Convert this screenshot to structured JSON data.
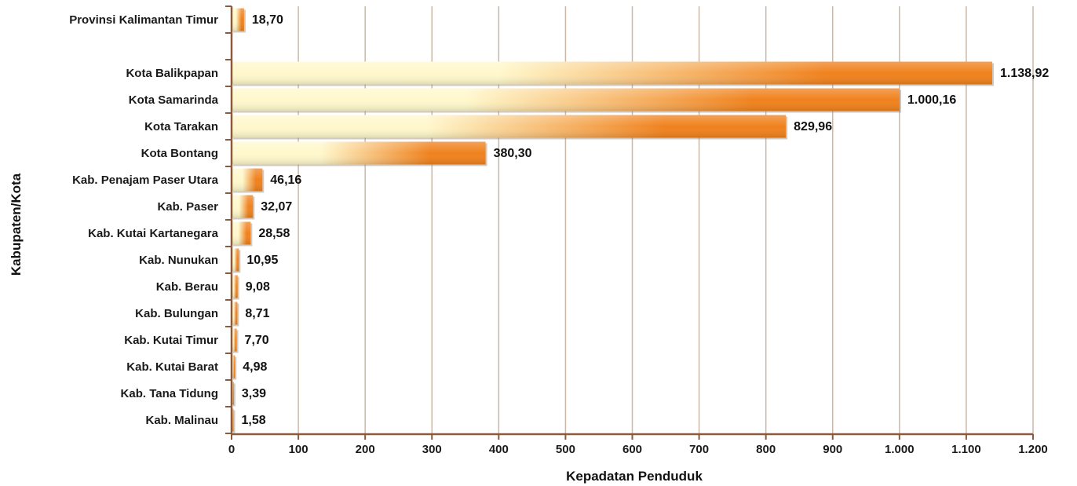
{
  "chart_data": {
    "type": "bar",
    "orientation": "horizontal",
    "xlabel": "Kepadatan Penduduk",
    "ylabel": "Kabupaten/Kota",
    "xlim": [
      0,
      1200
    ],
    "xticks": [
      0,
      100,
      200,
      300,
      400,
      500,
      600,
      700,
      800,
      900,
      1000,
      1100,
      1200
    ],
    "xtick_labels": [
      "0",
      "100",
      "200",
      "300",
      "400",
      "500",
      "600",
      "700",
      "800",
      "900",
      "1.000",
      "1.100",
      "1.200"
    ],
    "grid": "vertical",
    "categories": [
      "Provinsi Kalimantan Timur",
      "",
      "Kota Balikpapan",
      "Kota Samarinda",
      "Kota Tarakan",
      "Kota Bontang",
      "Kab. Penajam Paser Utara",
      "Kab. Paser",
      "Kab. Kutai Kartanegara",
      "Kab. Nunukan",
      "Kab. Berau",
      "Kab. Bulungan",
      "Kab. Kutai Timur",
      "Kab. Kutai Barat",
      "Kab. Tana Tidung",
      "Kab. Malinau"
    ],
    "values": [
      18.7,
      null,
      1138.92,
      1000.16,
      829.96,
      380.3,
      46.16,
      32.07,
      28.58,
      10.95,
      9.08,
      8.71,
      7.7,
      4.98,
      3.39,
      1.58
    ],
    "value_labels": [
      "18,70",
      "",
      "1.138,92",
      "1.000,16",
      "829,96",
      "380,30",
      "46,16",
      "32,07",
      "28,58",
      "10,95",
      "9,08",
      "8,71",
      "7,70",
      "4,98",
      "3,39",
      "1,58"
    ],
    "colors": {
      "bar_start": "#fff8cc",
      "bar_end": "#f0821e",
      "axis": "#8b5a3c",
      "grid": "#c9b8a8"
    }
  }
}
